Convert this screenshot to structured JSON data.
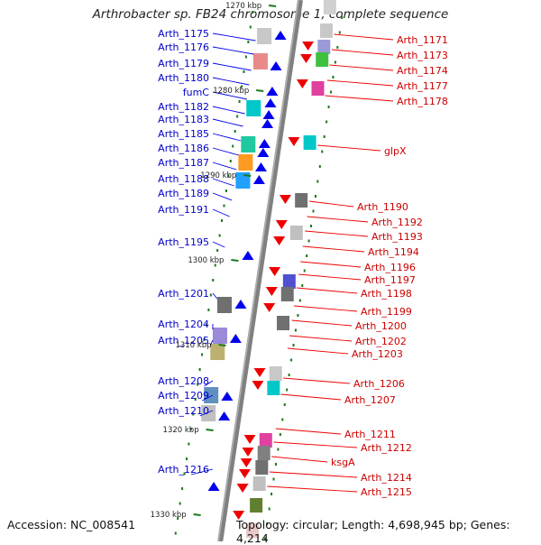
{
  "title": "Arthrobacter sp. FB24 chromosome 1, complete sequence",
  "footer": {
    "accession": "Accession: NC_008541",
    "topology": "Topology: circular; Length: 4,698,945 bp; Genes: 4,214"
  },
  "colors": {
    "forward": "#0000ee",
    "reverse": "#ee0000",
    "backbone": "#808080",
    "tick": "#1a7a1a"
  },
  "kbp_labels": [
    "1270 kbp",
    "1280 kbp",
    "1290 kbp",
    "1300 kbp",
    "1310 kbp",
    "1320 kbp",
    "1330 kbp"
  ],
  "left_genes": [
    "Arth_1175",
    "Arth_1176",
    "Arth_1179",
    "Arth_1180",
    "fumC",
    "Arth_1182",
    "Arth_1183",
    "Arth_1185",
    "Arth_1186",
    "Arth_1187",
    "Arth_1188",
    "Arth_1189",
    "Arth_1191",
    "Arth_1195",
    "Arth_1201",
    "Arth_1204",
    "Arth_1205",
    "Arth_1208",
    "Arth_1209",
    "Arth_1210",
    "Arth_1216"
  ],
  "right_genes": [
    "Arth_1171",
    "Arth_1173",
    "Arth_1174",
    "Arth_1177",
    "Arth_1178",
    "glpX",
    "Arth_1190",
    "Arth_1192",
    "Arth_1193",
    "Arth_1194",
    "Arth_1196",
    "Arth_1197",
    "Arth_1198",
    "Arth_1199",
    "Arth_1200",
    "Arth_1202",
    "Arth_1203",
    "Arth_1206",
    "Arth_1207",
    "Arth_1211",
    "Arth_1212",
    "ksgA",
    "Arth_1214",
    "Arth_1215"
  ]
}
